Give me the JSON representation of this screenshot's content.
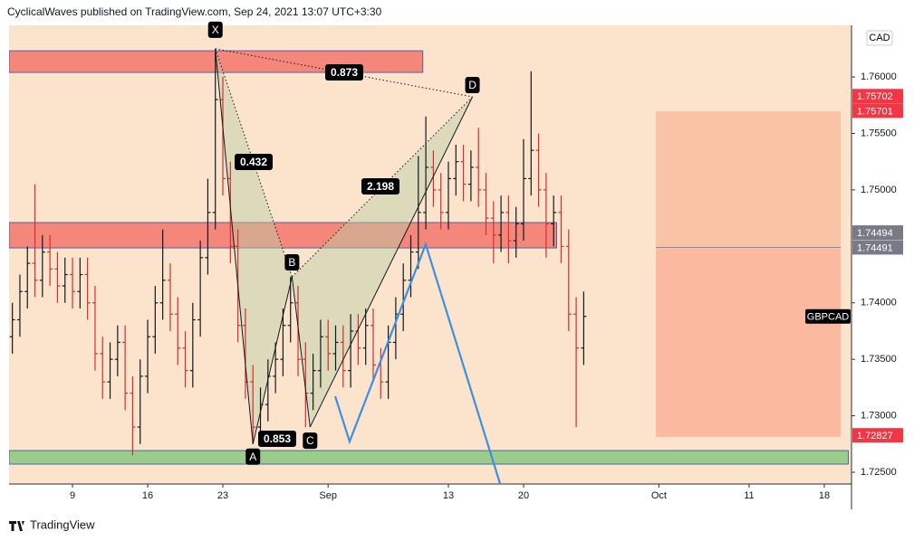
{
  "header": {
    "text": "CyclicalWaves published on TradingView.com, Sep 24, 2021 13:07 UTC+3:30"
  },
  "footer": {
    "text": "TradingView"
  },
  "chart_data": {
    "type": "ohlc",
    "currency": "CAD",
    "symbol": "GBPCAD",
    "xlim": [
      -4.22,
      51.81
    ],
    "ylim": [
      1.72396,
      1.76457
    ],
    "xticks": [
      {
        "value": 0,
        "label": "9"
      },
      {
        "value": 5,
        "label": "16"
      },
      {
        "value": 10,
        "label": "23"
      },
      {
        "value": 17,
        "label": "Sep"
      },
      {
        "value": 25,
        "label": "13"
      },
      {
        "value": 30,
        "label": "20"
      },
      {
        "value": 39,
        "label": "Oct"
      },
      {
        "value": 45,
        "label": "11"
      },
      {
        "value": 50,
        "label": "18"
      }
    ],
    "yticks": [
      {
        "value": 1.725,
        "label": "1.72500"
      },
      {
        "value": 1.73,
        "label": "1.73000"
      },
      {
        "value": 1.735,
        "label": "1.73500"
      },
      {
        "value": 1.74,
        "label": "1.74000"
      },
      {
        "value": 1.75,
        "label": "1.75000"
      },
      {
        "value": 1.755,
        "label": "1.75500"
      },
      {
        "value": 1.76,
        "label": "1.76000"
      }
    ],
    "up_color": "#131722",
    "down_color": "#d32f2f",
    "bars": {
      "x": [
        -4,
        -3.5,
        -3,
        -2.5,
        -2,
        -1.5,
        -1,
        -0.5,
        0,
        0.5,
        1,
        1.5,
        2,
        2.5,
        3,
        3.5,
        4,
        4.5,
        5,
        5.5,
        6,
        6.5,
        7,
        7.5,
        8,
        8.5,
        9,
        9.5,
        10,
        10.5,
        11,
        11.5,
        12,
        12.5,
        13,
        13.5,
        14,
        14.5,
        15,
        15.5,
        16,
        16.5,
        17,
        17.5,
        18,
        18.5,
        19,
        19.5,
        20,
        20.5,
        21,
        21.5,
        22,
        22.5,
        23,
        23.5,
        24,
        24.5,
        25,
        25.5,
        26,
        26.5,
        27,
        27.5,
        28,
        28.5,
        29,
        29.5,
        30,
        30.5,
        31,
        31.5,
        32,
        32.5,
        33,
        33.5,
        34
      ],
      "open": [
        1.737,
        1.7385,
        1.741,
        1.7435,
        1.742,
        1.7445,
        1.743,
        1.7415,
        1.7425,
        1.741,
        1.7425,
        1.74,
        1.7355,
        1.733,
        1.735,
        1.7365,
        1.732,
        1.729,
        1.7335,
        1.737,
        1.74,
        1.742,
        1.739,
        1.736,
        1.734,
        1.7385,
        1.744,
        1.748,
        1.758,
        1.751,
        1.745,
        1.738,
        1.733,
        1.729,
        1.731,
        1.7335,
        1.735,
        1.738,
        1.74,
        1.735,
        1.732,
        1.734,
        1.737,
        1.7355,
        1.7365,
        1.734,
        1.7375,
        1.736,
        1.738,
        1.7345,
        1.733,
        1.7365,
        1.739,
        1.742,
        1.7445,
        1.748,
        1.752,
        1.75,
        1.748,
        1.751,
        1.7525,
        1.7505,
        1.752,
        1.75,
        1.7475,
        1.746,
        1.748,
        1.7455,
        1.747,
        1.751,
        1.7535,
        1.75,
        1.747,
        1.748,
        1.745,
        1.739,
        1.736
      ],
      "high": [
        1.74,
        1.7425,
        1.745,
        1.7505,
        1.746,
        1.746,
        1.7445,
        1.744,
        1.744,
        1.744,
        1.744,
        1.7415,
        1.737,
        1.7365,
        1.738,
        1.738,
        1.7335,
        1.735,
        1.7385,
        1.7415,
        1.7465,
        1.7435,
        1.7405,
        1.7375,
        1.74,
        1.7455,
        1.751,
        1.7625,
        1.76,
        1.7525,
        1.7465,
        1.7395,
        1.7345,
        1.7325,
        1.735,
        1.7365,
        1.7395,
        1.7423,
        1.7415,
        1.7365,
        1.7355,
        1.7385,
        1.7385,
        1.738,
        1.738,
        1.739,
        1.739,
        1.7395,
        1.7395,
        1.736,
        1.738,
        1.7405,
        1.7435,
        1.746,
        1.753,
        1.7565,
        1.7535,
        1.7515,
        1.7525,
        1.754,
        1.754,
        1.7535,
        1.7555,
        1.7515,
        1.749,
        1.7495,
        1.7495,
        1.7485,
        1.7545,
        1.7605,
        1.755,
        1.7515,
        1.7495,
        1.7495,
        1.7465,
        1.7405,
        1.741
      ],
      "low": [
        1.7355,
        1.737,
        1.7395,
        1.7405,
        1.7405,
        1.7415,
        1.74,
        1.74,
        1.7395,
        1.7395,
        1.7385,
        1.734,
        1.7315,
        1.7315,
        1.7335,
        1.7305,
        1.7265,
        1.7275,
        1.732,
        1.7355,
        1.7385,
        1.7375,
        1.7345,
        1.7325,
        1.7325,
        1.737,
        1.7425,
        1.7465,
        1.7495,
        1.7435,
        1.7365,
        1.7315,
        1.7275,
        1.728,
        1.7295,
        1.732,
        1.7335,
        1.7365,
        1.7335,
        1.729,
        1.7305,
        1.7325,
        1.734,
        1.734,
        1.7325,
        1.7325,
        1.7345,
        1.7345,
        1.733,
        1.7315,
        1.7315,
        1.735,
        1.7375,
        1.7405,
        1.743,
        1.7465,
        1.7485,
        1.7465,
        1.7465,
        1.7495,
        1.749,
        1.749,
        1.7485,
        1.746,
        1.7435,
        1.7445,
        1.7435,
        1.744,
        1.7455,
        1.7495,
        1.7485,
        1.744,
        1.745,
        1.7435,
        1.7375,
        1.729,
        1.7345
      ],
      "close": [
        1.7385,
        1.741,
        1.7435,
        1.742,
        1.7445,
        1.743,
        1.7415,
        1.7425,
        1.741,
        1.7425,
        1.74,
        1.7355,
        1.733,
        1.735,
        1.7365,
        1.732,
        1.729,
        1.7335,
        1.737,
        1.74,
        1.742,
        1.739,
        1.736,
        1.734,
        1.7385,
        1.744,
        1.748,
        1.758,
        1.751,
        1.745,
        1.738,
        1.733,
        1.729,
        1.731,
        1.7335,
        1.735,
        1.738,
        1.74,
        1.735,
        1.732,
        1.734,
        1.737,
        1.7355,
        1.7365,
        1.734,
        1.7375,
        1.736,
        1.738,
        1.7345,
        1.733,
        1.7365,
        1.739,
        1.742,
        1.7445,
        1.748,
        1.752,
        1.75,
        1.748,
        1.751,
        1.7525,
        1.7505,
        1.752,
        1.75,
        1.7475,
        1.746,
        1.748,
        1.7455,
        1.747,
        1.751,
        1.7535,
        1.75,
        1.747,
        1.748,
        1.745,
        1.739,
        1.736,
        1.7388
      ]
    },
    "zones": [
      {
        "x0": -4.22,
        "x1": 23.3,
        "top": 1.76232,
        "bottom": 1.7604,
        "color": "#f5877a",
        "border": "#2a4fa8"
      },
      {
        "x0": -4.22,
        "x1": 32.2,
        "top": 1.74711,
        "bottom": 1.74486,
        "color": "#f5877a",
        "border": "#2a4fa8"
      },
      {
        "x0": -4.22,
        "x1": 51.6,
        "top": 1.72692,
        "bottom": 1.72572,
        "color": "#9ccc8a",
        "border": "#2a4fa8"
      },
      {
        "x0": 38.8,
        "x1": 51.1,
        "top": 1.75696,
        "bottom": 1.74486,
        "color": "#fbc3a6",
        "border": "none"
      },
      {
        "x0": 38.8,
        "x1": 51.1,
        "top": 1.74486,
        "bottom": 1.72813,
        "color": "#fbb9a0",
        "border": "none"
      }
    ],
    "level": {
      "x0": 38.8,
      "x1": 51.1,
      "price": 1.74491,
      "color": "#7b8db0"
    },
    "pattern": {
      "points": [
        {
          "label": "X",
          "x": 9.5,
          "price": 1.7625
        },
        {
          "label": "A",
          "x": 12,
          "price": 1.7275
        },
        {
          "label": "B",
          "x": 14.6,
          "price": 1.7423
        },
        {
          "label": "C",
          "x": 15.8,
          "price": 1.729
        },
        {
          "label": "D",
          "x": 26.6,
          "price": 1.75824
        }
      ],
      "ratios": [
        "0.873",
        "0.432",
        "2.198",
        "0.853"
      ]
    },
    "projection": {
      "color": "#3d8fe0",
      "x": [
        17.47,
        18.43,
        23.49,
        28.9
      ],
      "price": [
        1.73173,
        1.72772,
        1.74518,
        1.722
      ]
    },
    "price_tags": [
      {
        "value": 1.75702,
        "color": "#f23645"
      },
      {
        "value": 1.75701,
        "color": "#f23645"
      },
      {
        "value": 1.74494,
        "color": "#787b86"
      },
      {
        "value": 1.74491,
        "color": "#787b86"
      },
      {
        "value": 1.72827,
        "color": "#f23645"
      }
    ]
  }
}
